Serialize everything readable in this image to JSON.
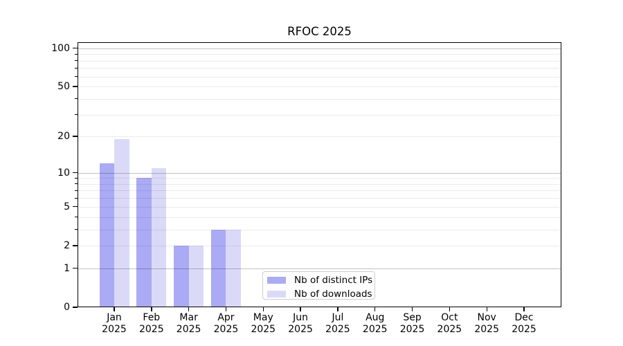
{
  "title": "RFOC 2025",
  "colors": {
    "bar_distinct_ips": "#aaaaf5",
    "bar_downloads": "#dadaf8",
    "grid_major": "rgba(0,0,0,0.24)",
    "grid_minor": "rgba(0,0,0,0.08)",
    "spine": "#000000",
    "text": "#000000",
    "legend_border": "#cccccc",
    "background": "#ffffff"
  },
  "y_axis": {
    "tick_labels": [
      "100",
      "50",
      "20",
      "10",
      "5",
      "2",
      "1",
      "0"
    ],
    "tick_values": [
      100,
      50,
      20,
      10,
      5,
      2,
      1,
      0
    ]
  },
  "x_axis": {
    "months": [
      "Jan",
      "Feb",
      "Mar",
      "Apr",
      "May",
      "Jun",
      "Jul",
      "Aug",
      "Sep",
      "Oct",
      "Nov",
      "Dec"
    ],
    "year": "2025"
  },
  "legend": {
    "items": [
      {
        "label": "Nb of distinct IPs",
        "color": "#aaaaf5"
      },
      {
        "label": "Nb of downloads",
        "color": "#dadaf8"
      }
    ]
  },
  "chart_data": {
    "type": "bar",
    "title": "RFOC 2025",
    "categories": [
      "Jan 2025",
      "Feb 2025",
      "Mar 2025",
      "Apr 2025",
      "May 2025",
      "Jun 2025",
      "Jul 2025",
      "Aug 2025",
      "Sep 2025",
      "Oct 2025",
      "Nov 2025",
      "Dec 2025"
    ],
    "series": [
      {
        "name": "Nb of distinct IPs",
        "values": [
          12,
          9,
          2,
          3,
          0,
          0,
          0,
          0,
          0,
          0,
          0,
          0
        ]
      },
      {
        "name": "Nb of downloads",
        "values": [
          19,
          11,
          2,
          3,
          0,
          0,
          0,
          0,
          0,
          0,
          0,
          0
        ]
      }
    ],
    "yscale": "log1p",
    "ylim": [
      0,
      110
    ],
    "yticks_labeled": [
      0,
      1,
      2,
      5,
      10,
      20,
      50,
      100
    ],
    "yticks_major": [
      1,
      10,
      100
    ],
    "yticks_minor": [
      2,
      3,
      4,
      5,
      6,
      7,
      8,
      9,
      20,
      30,
      40,
      50,
      60,
      70,
      80,
      90
    ],
    "grid": "both",
    "legend_position": "inside lower center"
  }
}
